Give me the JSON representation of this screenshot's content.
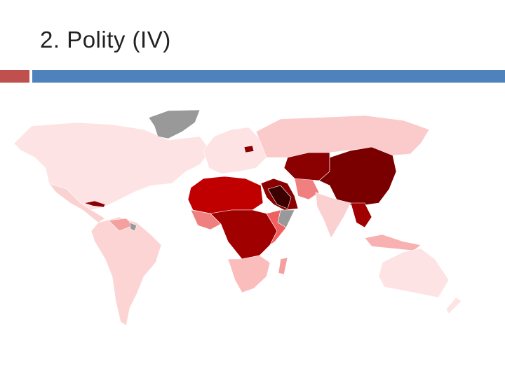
{
  "header": {
    "title": "2. Polity (IV)"
  }
}
